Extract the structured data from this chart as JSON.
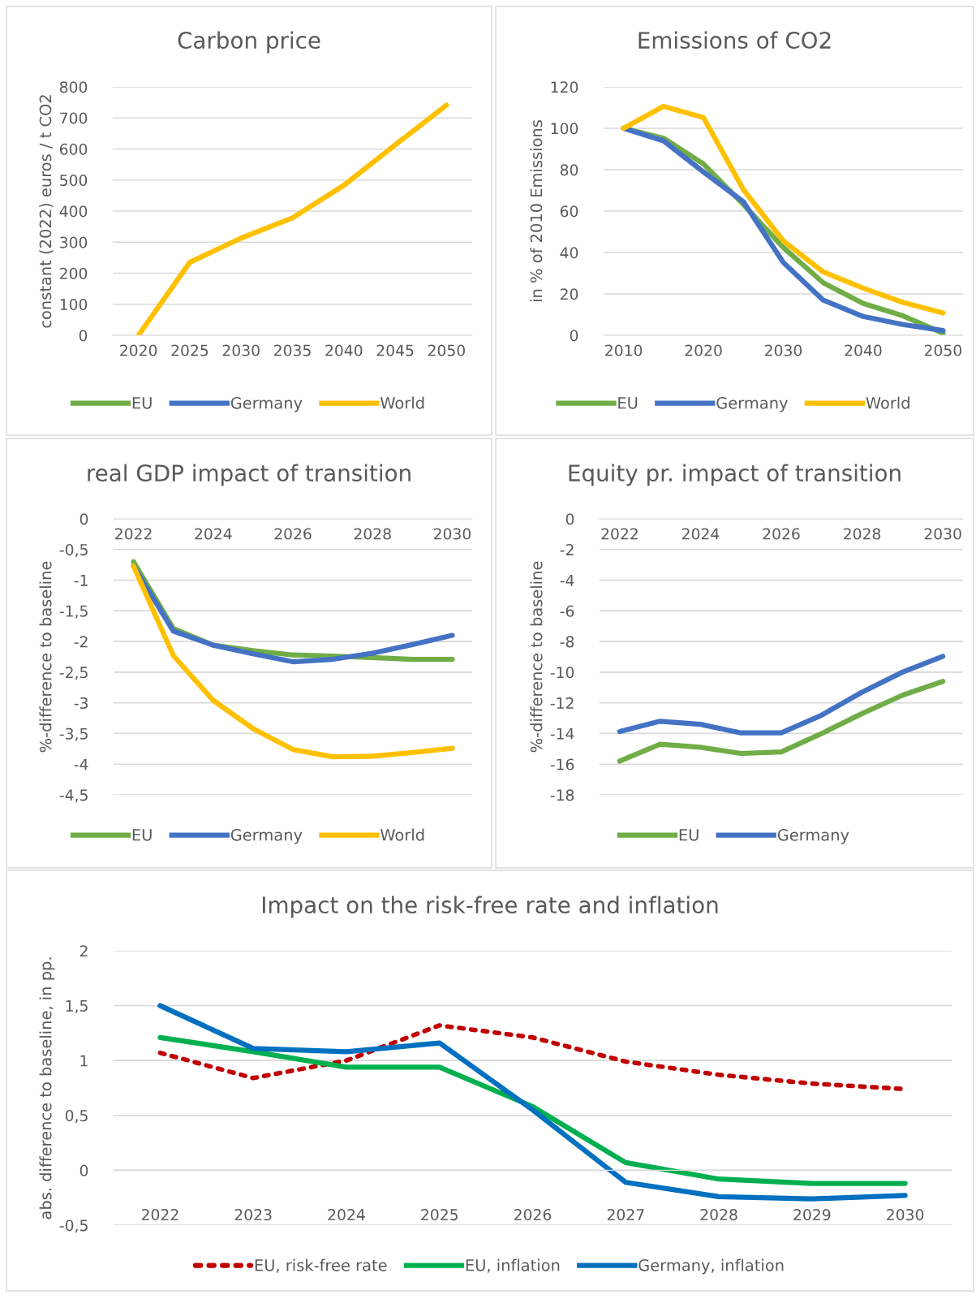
{
  "chart_data": [
    {
      "type": "line",
      "title": "Carbon price",
      "ylabel": "constant (2022) euros / t CO2",
      "x": [
        2020,
        2025,
        2030,
        2035,
        2040,
        2045,
        2050
      ],
      "xlim": [
        2017.5,
        2052.5
      ],
      "xticks": [
        2020,
        2025,
        2030,
        2035,
        2040,
        2045,
        2050
      ],
      "ylim": [
        0,
        800
      ],
      "yticks": [
        0,
        100,
        200,
        300,
        400,
        500,
        600,
        700,
        800
      ],
      "grid": "y",
      "legend": "bottom",
      "marker": "none",
      "series": [
        {
          "name": "EU",
          "color": "#70ad47",
          "values": [
            null,
            null,
            null,
            null,
            null,
            null,
            null
          ]
        },
        {
          "name": "Germany",
          "color": "#4472c4",
          "values": [
            null,
            null,
            null,
            null,
            null,
            null,
            null
          ]
        },
        {
          "name": "World",
          "color": "#ffc000",
          "values": [
            0,
            235,
            313,
            378,
            483,
            613,
            741
          ]
        }
      ]
    },
    {
      "type": "line",
      "title": "Emissions of CO2",
      "ylabel": "in % of 2010 Emissions",
      "x": [
        2010,
        2015,
        2020,
        2025,
        2030,
        2035,
        2040,
        2045,
        2050
      ],
      "xlim": [
        2007.5,
        2052.5
      ],
      "xticks": [
        2010,
        2020,
        2030,
        2040,
        2050
      ],
      "ylim": [
        0,
        120
      ],
      "yticks": [
        0,
        20,
        40,
        60,
        80,
        100,
        120
      ],
      "grid": "y",
      "legend": "bottom",
      "marker": "none",
      "series": [
        {
          "name": "EU",
          "color": "#70ad47",
          "values": [
            100,
            95.2,
            82.8,
            63.2,
            42.4,
            25.4,
            15.4,
            9.4,
            1
          ]
        },
        {
          "name": "Germany",
          "color": "#4472c4",
          "values": [
            100,
            93.9,
            78.9,
            64.5,
            35.2,
            17,
            9.1,
            5.2,
            2.3
          ]
        },
        {
          "name": "World",
          "color": "#ffc000",
          "values": [
            100,
            110.6,
            105.2,
            70.4,
            45.6,
            30.6,
            22.8,
            15.9,
            10.8
          ]
        }
      ]
    },
    {
      "type": "line",
      "title": "real GDP impact of transition",
      "ylabel": "%-difference to baseline",
      "x": [
        2022,
        2023,
        2024,
        2025,
        2026,
        2027,
        2028,
        2029,
        2030
      ],
      "xlim": [
        2021.5,
        2030.5
      ],
      "xticks": [
        2022,
        2024,
        2026,
        2028,
        2030
      ],
      "ylim": [
        -4.5,
        0
      ],
      "yticks": [
        0,
        {
          "value": -0.5,
          "label": "-0,5"
        },
        -1,
        {
          "value": -1.5,
          "label": "-1,5"
        },
        -2,
        {
          "value": -2.5,
          "label": "-2,5"
        },
        -3,
        {
          "value": -3.5,
          "label": "-3,5"
        },
        -4,
        {
          "value": -4.5,
          "label": "-4,5"
        }
      ],
      "grid": "y",
      "legend": "bottom",
      "marker": "none",
      "series": [
        {
          "name": "EU",
          "color": "#70ad47",
          "values": [
            -0.7,
            -1.79,
            -2.06,
            -2.15,
            -2.22,
            -2.24,
            -2.26,
            -2.29,
            -2.29
          ]
        },
        {
          "name": "Germany",
          "color": "#4472c4",
          "values": [
            -0.77,
            -1.83,
            -2.06,
            -2.2,
            -2.33,
            -2.29,
            -2.19,
            -2.05,
            -1.9
          ]
        },
        {
          "name": "World",
          "color": "#ffc000",
          "values": [
            -0.77,
            -2.23,
            -2.96,
            -3.42,
            -3.76,
            -3.88,
            -3.87,
            -3.81,
            -3.74
          ]
        }
      ]
    },
    {
      "type": "line",
      "title": "Equity pr. impact of transition",
      "ylabel": "%-difference to baseline",
      "x": [
        2022,
        2023,
        2024,
        2025,
        2026,
        2027,
        2028,
        2029,
        2030
      ],
      "xlim": [
        2021.5,
        2030.5
      ],
      "xticks": [
        2022,
        2024,
        2026,
        2028,
        2030
      ],
      "ylim": [
        -18,
        0
      ],
      "yticks": [
        0,
        -2,
        -4,
        -6,
        -8,
        -10,
        -12,
        -14,
        -16,
        -18
      ],
      "grid": "y",
      "legend": "bottom",
      "marker": "none",
      "series": [
        {
          "name": "EU",
          "color": "#70ad47",
          "values": [
            -15.8,
            -14.7,
            -14.9,
            -15.3,
            -15.2,
            -14.0,
            -12.7,
            -11.5,
            -10.6
          ]
        },
        {
          "name": "Germany",
          "color": "#4472c4",
          "values": [
            -13.87,
            -13.2,
            -13.4,
            -13.96,
            -13.96,
            -12.8,
            -11.3,
            -10.0,
            -8.97
          ]
        }
      ]
    },
    {
      "type": "line",
      "title": "Impact on the risk-free rate and inflation",
      "ylabel": "abs. difference to baseline, in pp.",
      "x": [
        2022,
        2023,
        2024,
        2025,
        2026,
        2027,
        2028,
        2029,
        2030
      ],
      "xlim": [
        2021.5,
        2030.5
      ],
      "xticks": [
        2022,
        2023,
        2024,
        2025,
        2026,
        2027,
        2028,
        2029,
        2030
      ],
      "ylim": [
        -0.5,
        2
      ],
      "yticks": [
        {
          "value": -0.5,
          "label": "-0,5"
        },
        0,
        {
          "value": 0.5,
          "label": "0,5"
        },
        1,
        {
          "value": 1.5,
          "label": "1,5"
        },
        2
      ],
      "grid": "y",
      "legend": "bottom",
      "marker": "none",
      "series": [
        {
          "name": "EU, risk-free rate",
          "color": "#c00000",
          "line_style": "dotted",
          "values": [
            1.07,
            0.84,
            1.0,
            1.32,
            1.21,
            0.99,
            0.87,
            0.79,
            0.74
          ]
        },
        {
          "name": "EU, inflation",
          "color": "#00b050",
          "line_style": "solid",
          "values": [
            1.21,
            1.08,
            0.94,
            0.94,
            0.58,
            0.07,
            -0.08,
            -0.12,
            -0.12
          ]
        },
        {
          "name": "Germany, inflation",
          "color": "#0070c0",
          "line_style": "solid",
          "values": [
            1.5,
            1.11,
            1.08,
            1.16,
            0.55,
            -0.11,
            -0.24,
            -0.26,
            -0.23
          ]
        }
      ]
    }
  ]
}
